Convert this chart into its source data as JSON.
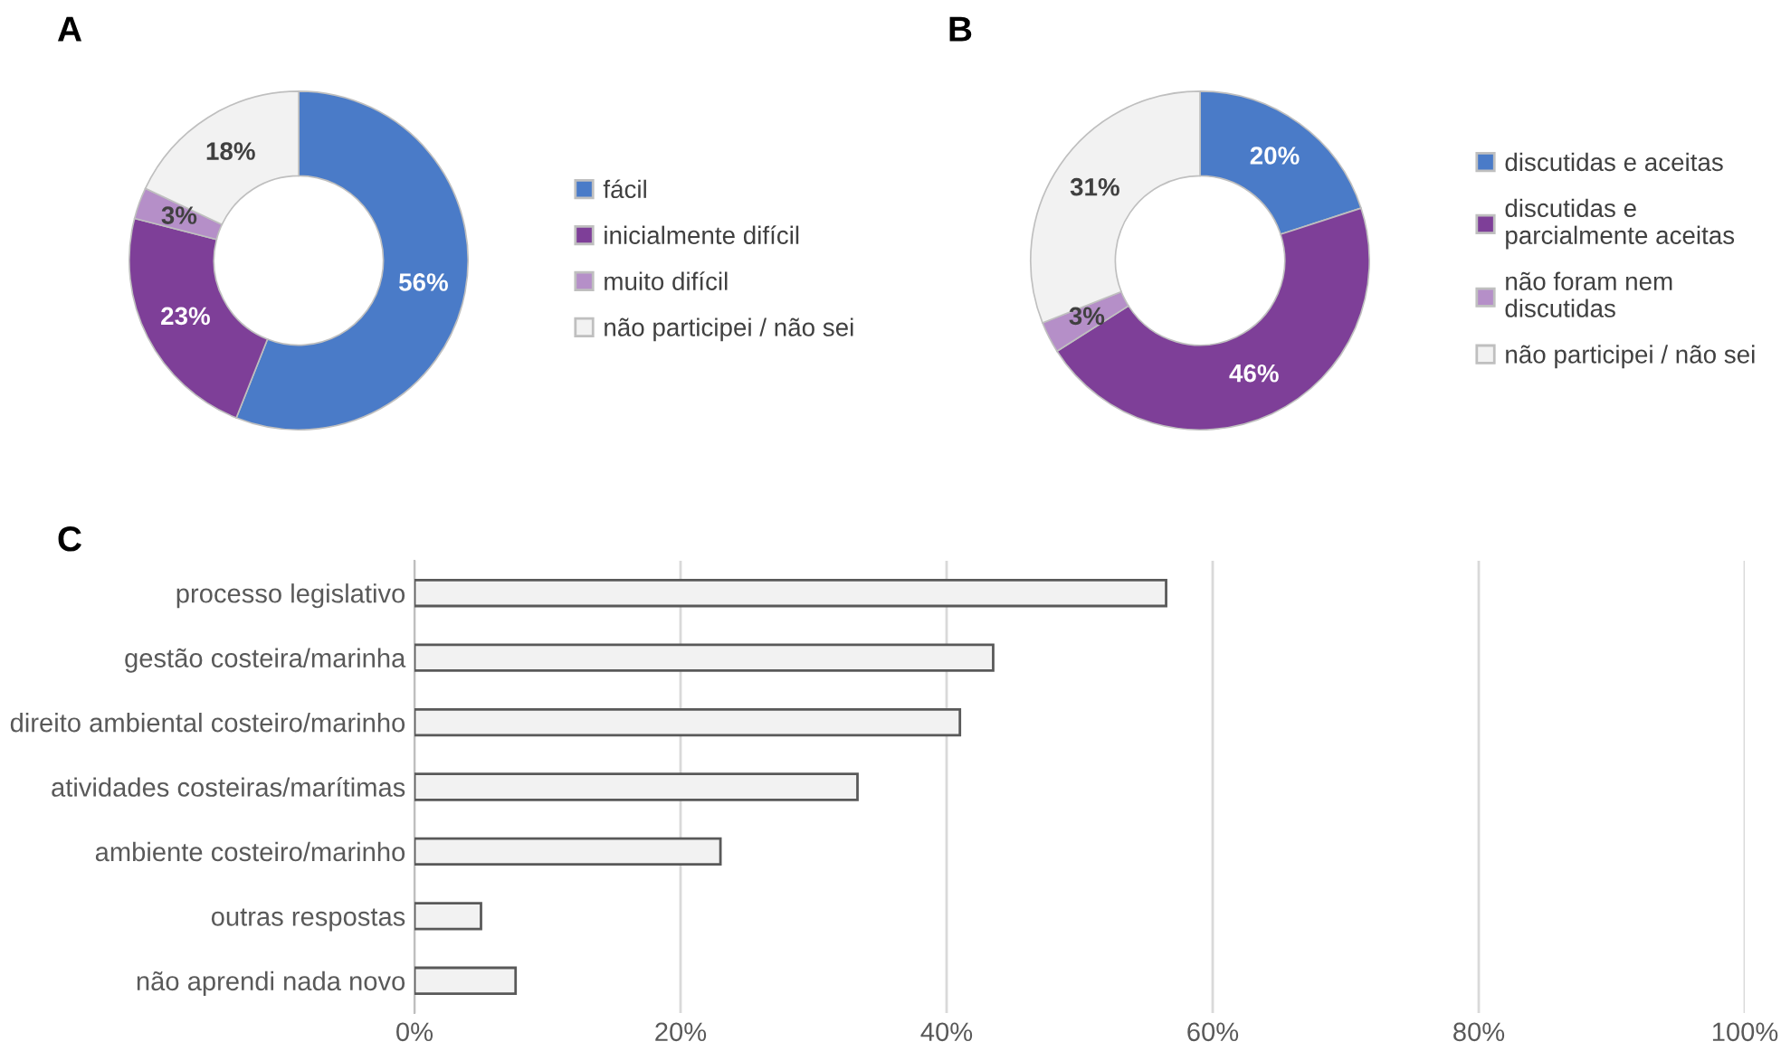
{
  "chart_data": [
    {
      "type": "donut",
      "title": "A",
      "categories": [
        "fácil",
        "inicialmente difícil",
        "muito difícil",
        "não participei / não sei"
      ],
      "values": [
        56,
        23,
        3,
        18
      ],
      "value_labels": [
        "56%",
        "23%",
        "3%",
        "18%"
      ],
      "colors": [
        "#4a7bc8",
        "#7e3f98",
        "#b58fc8",
        "#f2f2f2"
      ],
      "legend": "right"
    },
    {
      "type": "donut",
      "title": "B",
      "categories": [
        "discutidas e aceitas",
        "discutidas e\nparcialmente aceitas",
        "não foram nem\ndiscutidas",
        "não participei / não sei"
      ],
      "values": [
        20,
        46,
        3,
        31
      ],
      "value_labels": [
        "20%",
        "46%",
        "3%",
        "31%"
      ],
      "colors": [
        "#4a7bc8",
        "#7e3f98",
        "#b58fc8",
        "#f2f2f2"
      ],
      "legend": "right"
    },
    {
      "type": "bar",
      "title": "C",
      "orientation": "horizontal",
      "categories": [
        "processo legislativo",
        "gestão costeira/marinha",
        "direito ambiental costeiro/marinho",
        "atividades costeiras/marítimas",
        "ambiente costeiro/marinho",
        "outras respostas",
        "não aprendi nada novo"
      ],
      "values": [
        56.5,
        43.5,
        41,
        33.3,
        23,
        5,
        7.6
      ],
      "color": "#f2f2f2",
      "xlim": [
        0,
        100
      ],
      "xticks": [
        {
          "value": 0,
          "label": "0%"
        },
        {
          "value": 20,
          "label": "20%"
        },
        {
          "value": 40,
          "label": "40%"
        },
        {
          "value": 60,
          "label": "60%"
        },
        {
          "value": 80,
          "label": "80%"
        },
        {
          "value": 100,
          "label": "100%"
        }
      ],
      "grid": "x"
    }
  ]
}
